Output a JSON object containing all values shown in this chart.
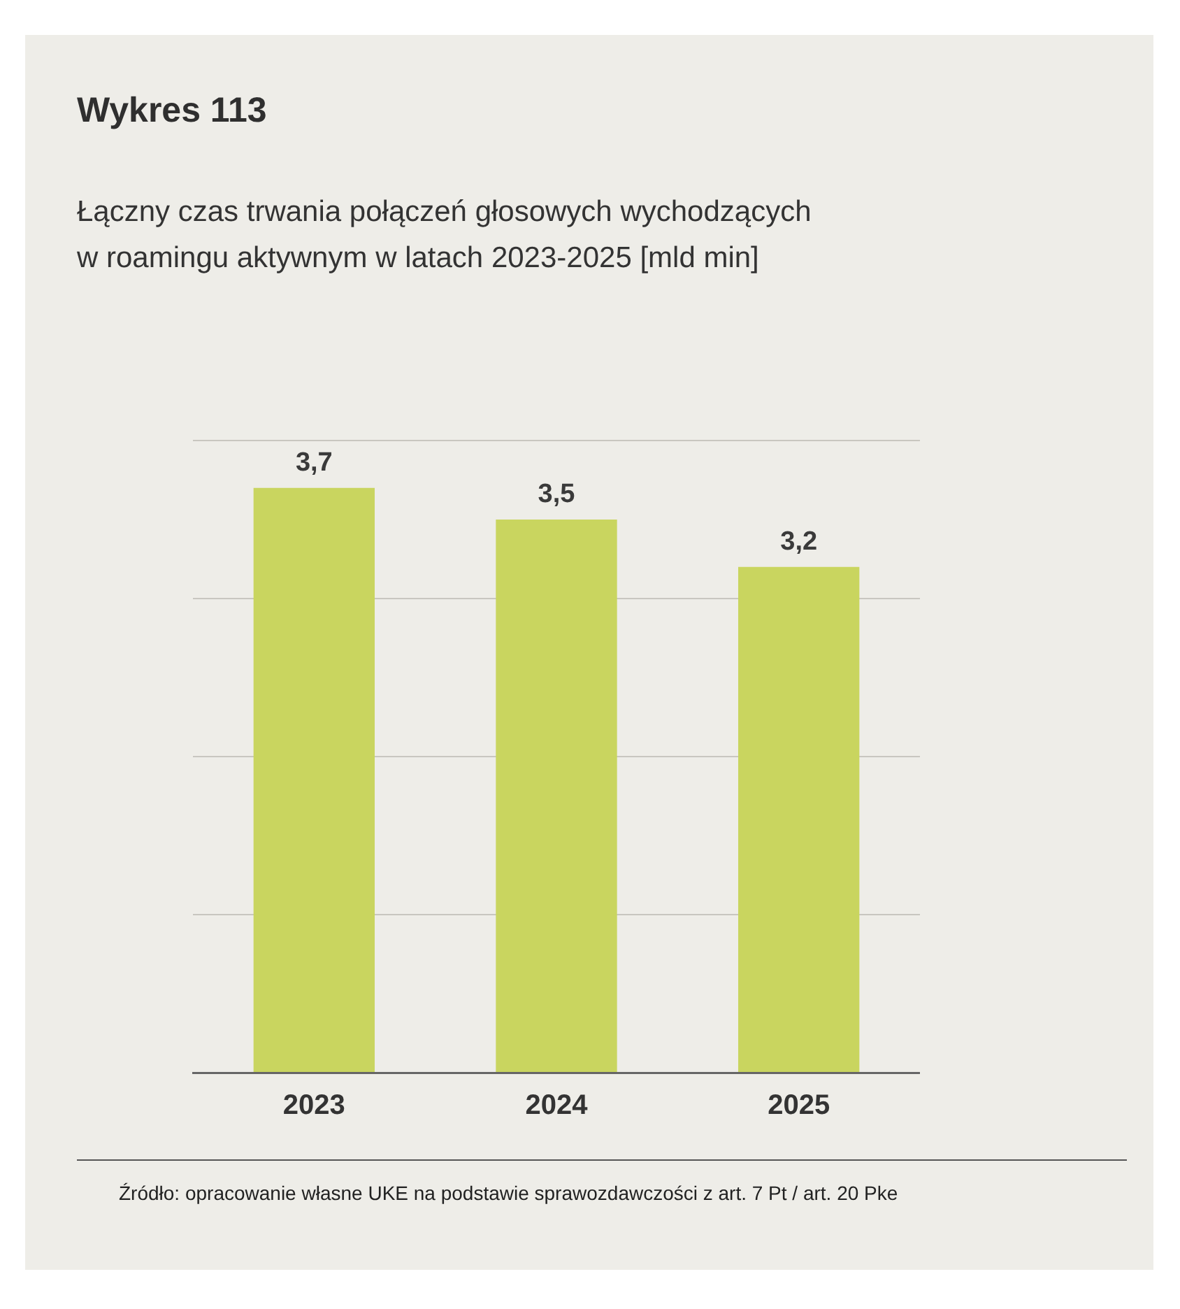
{
  "chart_data": {
    "type": "bar",
    "title": "Wykres 113",
    "subtitle": "Łączny czas trwania połączeń głosowych wychodzących\nw roamingu aktywnym w latach 2023-2025 [mld min]",
    "categories": [
      "2023",
      "2024",
      "2025"
    ],
    "values": [
      3.7,
      3.5,
      3.2
    ],
    "color": "#c9d55f",
    "value_labels": [
      "3,7",
      "3,5",
      "3,2"
    ],
    "tick_labels": "x",
    "grid": "y",
    "annotations": [
      "Źródło: opracowanie własne UKE na podstawie sprawozdawczości z art. 7 Pt / art. 20 Pke"
    ]
  }
}
